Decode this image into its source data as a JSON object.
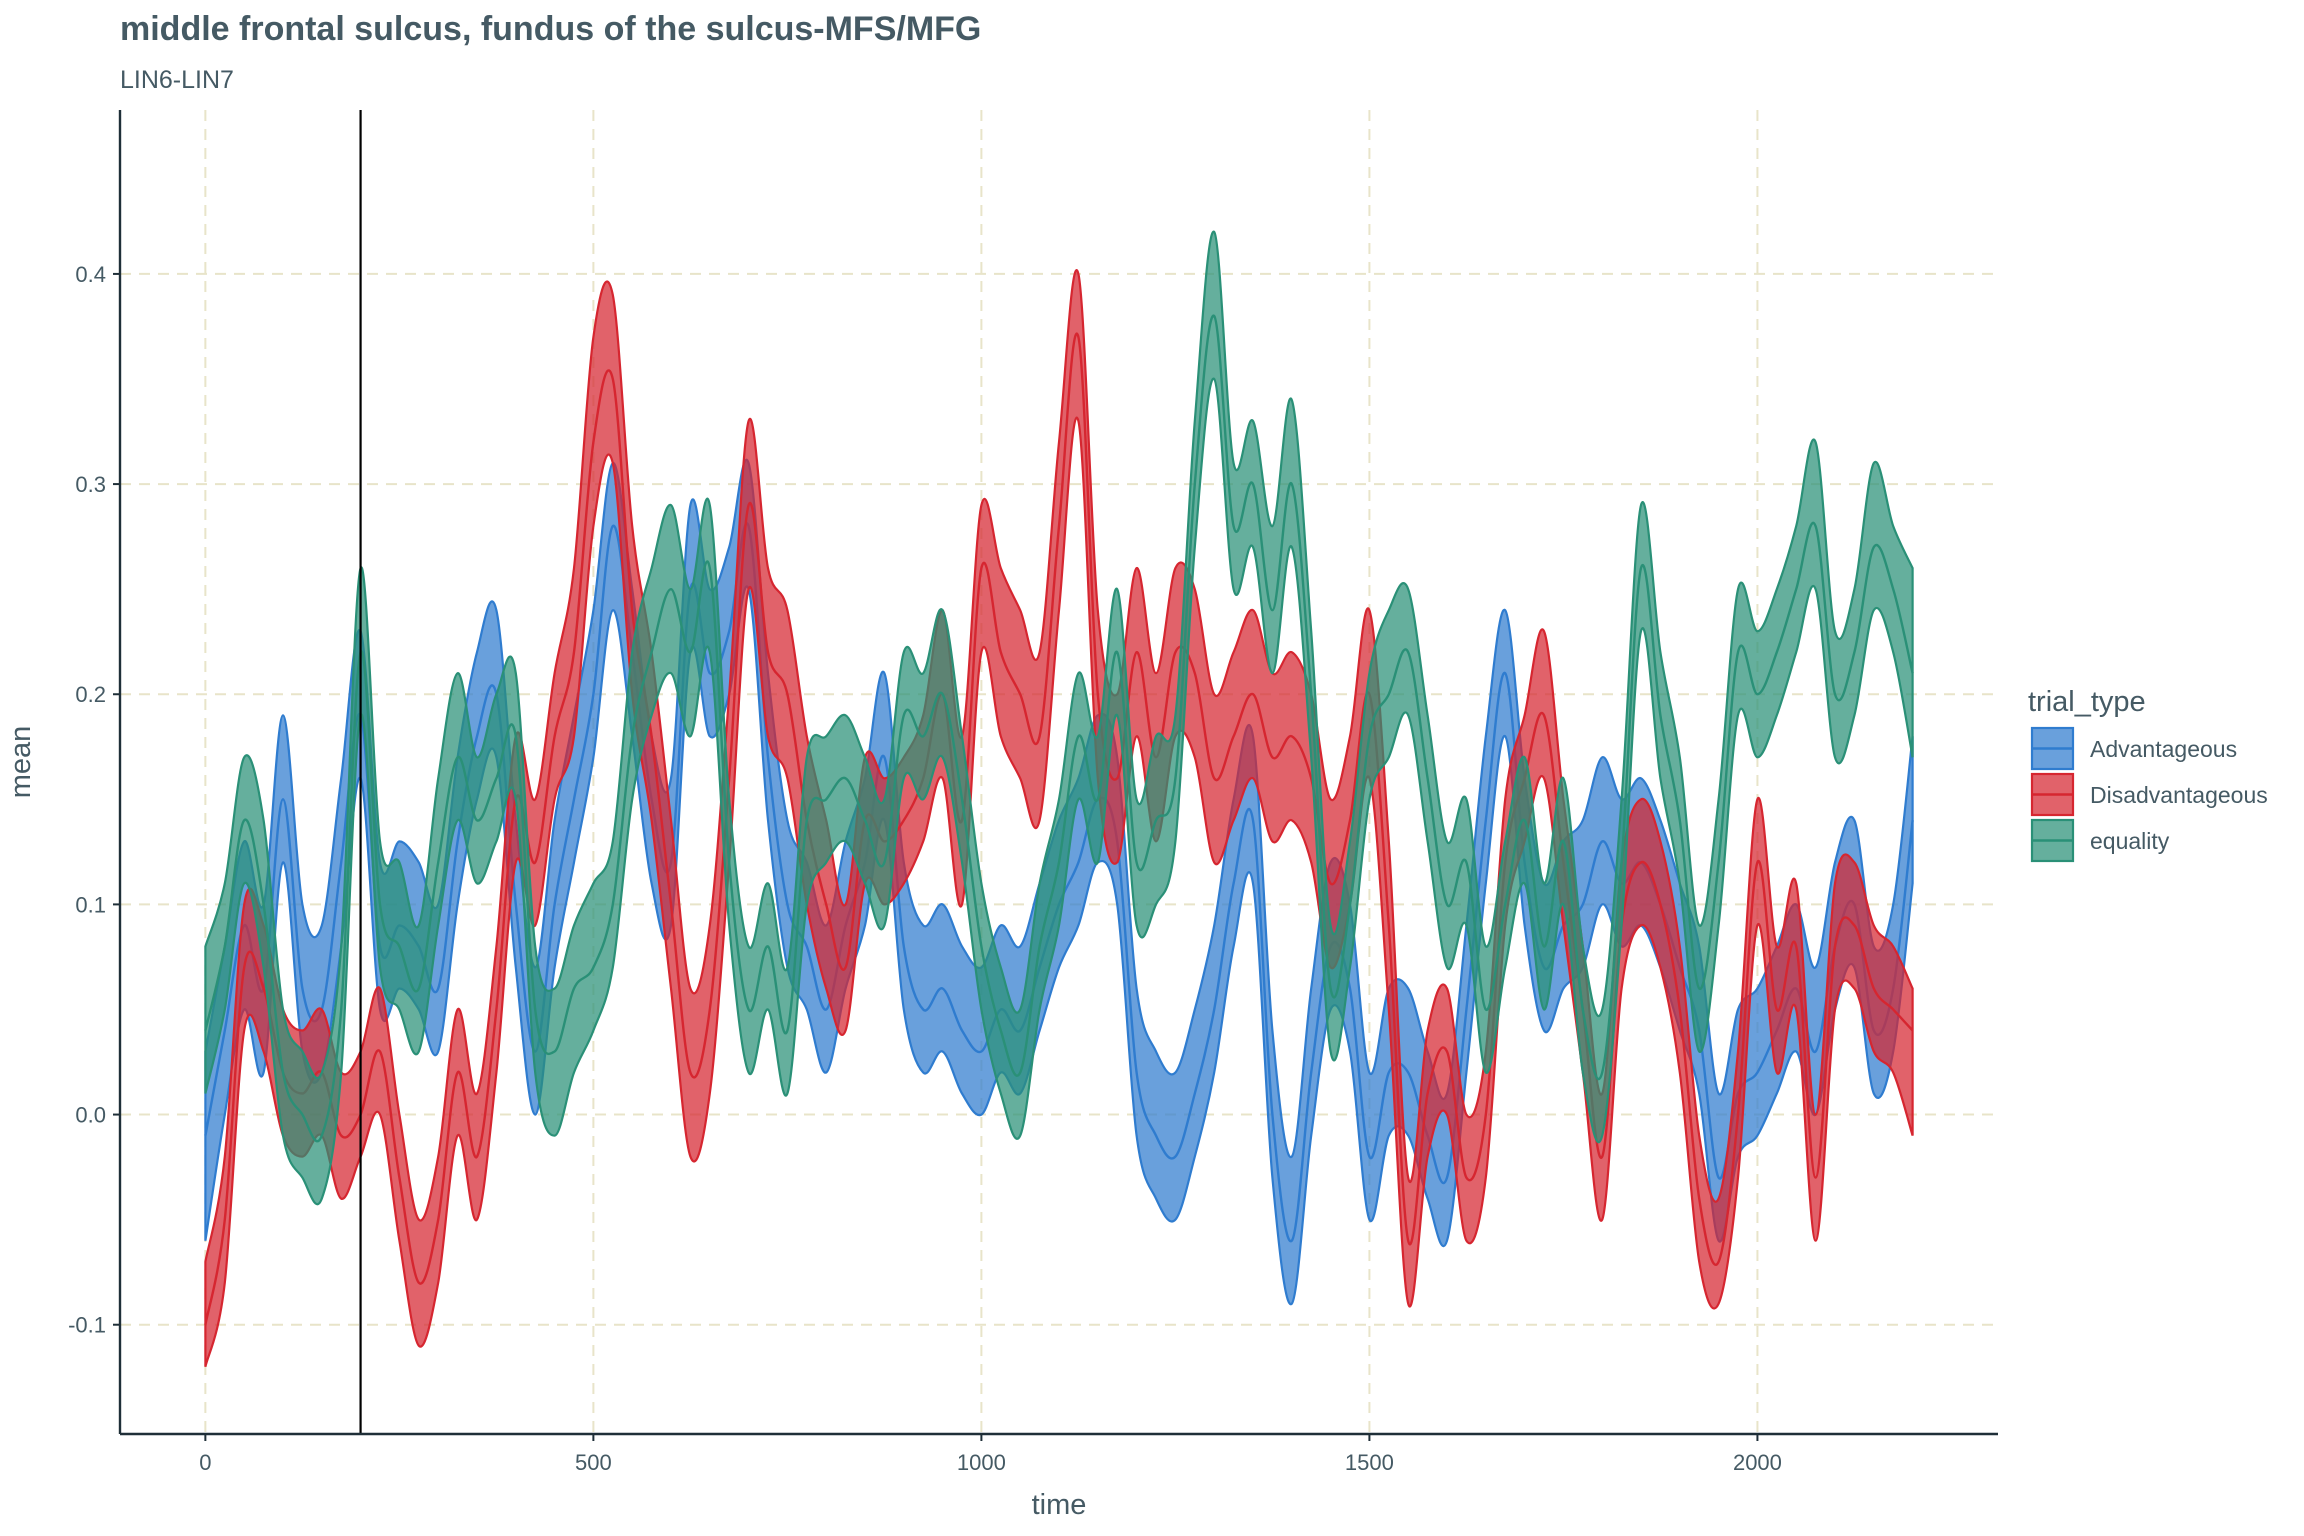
{
  "chart_data": {
    "type": "area",
    "title": "middle frontal sulcus, fundus of the sulcus-MFS/MFG",
    "subtitle": "LIN6-LIN7",
    "xlabel": "time",
    "ylabel": "mean",
    "xlim": [
      -110,
      2310
    ],
    "ylim": [
      -0.152,
      0.478
    ],
    "xticks": [
      0,
      500,
      1000,
      1500,
      2000
    ],
    "xtick_labels": [
      "0",
      "500",
      "1000",
      "1500",
      "2000"
    ],
    "yticks": [
      -0.1,
      0.0,
      0.1,
      0.2,
      0.3,
      0.4
    ],
    "ytick_labels": [
      "-0.1",
      "0.0",
      "0.1",
      "0.2",
      "0.3",
      "0.4"
    ],
    "grid": true,
    "reference_vline_x": 200,
    "legend": {
      "title": "trial_type",
      "position": "right"
    },
    "x": [
      0,
      25,
      50,
      75,
      100,
      125,
      150,
      175,
      200,
      225,
      250,
      275,
      300,
      325,
      350,
      375,
      400,
      425,
      450,
      475,
      500,
      525,
      550,
      575,
      600,
      625,
      650,
      675,
      700,
      725,
      750,
      775,
      800,
      825,
      850,
      875,
      900,
      925,
      950,
      975,
      1000,
      1025,
      1050,
      1075,
      1100,
      1125,
      1150,
      1175,
      1200,
      1225,
      1250,
      1275,
      1300,
      1325,
      1350,
      1375,
      1400,
      1425,
      1450,
      1475,
      1500,
      1525,
      1550,
      1575,
      1600,
      1625,
      1650,
      1675,
      1700,
      1725,
      1750,
      1775,
      1800,
      1825,
      1850,
      1875,
      1900,
      1925,
      1950,
      1975,
      2000,
      2025,
      2050,
      2075,
      2100,
      2125,
      2150,
      2175,
      2200
    ],
    "series": [
      {
        "name": "Advantageous",
        "color": "#2f7ccf",
        "mean": [
          -0.01,
          0.04,
          0.09,
          0.06,
          0.15,
          0.06,
          0.05,
          0.12,
          0.19,
          0.08,
          0.09,
          0.08,
          0.06,
          0.13,
          0.18,
          0.2,
          0.1,
          0.03,
          0.1,
          0.15,
          0.2,
          0.28,
          0.22,
          0.15,
          0.12,
          0.25,
          0.21,
          0.23,
          0.28,
          0.17,
          0.1,
          0.08,
          0.05,
          0.09,
          0.12,
          0.17,
          0.08,
          0.05,
          0.06,
          0.04,
          0.03,
          0.05,
          0.04,
          0.07,
          0.1,
          0.12,
          0.15,
          0.13,
          0.02,
          -0.01,
          -0.02,
          0.01,
          0.05,
          0.11,
          0.14,
          0.0,
          -0.06,
          0.02,
          0.08,
          0.06,
          -0.02,
          0.02,
          0.02,
          -0.01,
          -0.03,
          0.05,
          0.14,
          0.21,
          0.12,
          0.07,
          0.09,
          0.1,
          0.13,
          0.11,
          0.12,
          0.1,
          0.07,
          0.04,
          -0.03,
          0.01,
          0.02,
          0.04,
          0.06,
          0.03,
          0.08,
          0.1,
          0.04,
          0.06,
          0.14
        ],
        "lower": [
          -0.06,
          0.0,
          0.05,
          0.02,
          0.12,
          0.03,
          0.02,
          0.08,
          0.16,
          0.05,
          0.06,
          0.05,
          0.03,
          0.1,
          0.15,
          0.17,
          0.07,
          0.0,
          0.07,
          0.12,
          0.17,
          0.24,
          0.18,
          0.11,
          0.09,
          0.22,
          0.18,
          0.2,
          0.25,
          0.14,
          0.07,
          0.05,
          0.02,
          0.06,
          0.09,
          0.14,
          0.05,
          0.02,
          0.03,
          0.01,
          0.0,
          0.02,
          0.01,
          0.04,
          0.07,
          0.09,
          0.12,
          0.1,
          -0.01,
          -0.04,
          -0.05,
          -0.02,
          0.02,
          0.08,
          0.11,
          -0.03,
          -0.09,
          -0.01,
          0.05,
          0.03,
          -0.05,
          -0.01,
          -0.01,
          -0.04,
          -0.06,
          0.02,
          0.11,
          0.18,
          0.09,
          0.04,
          0.06,
          0.07,
          0.1,
          0.08,
          0.09,
          0.07,
          0.04,
          0.01,
          -0.06,
          -0.02,
          -0.01,
          0.01,
          0.03,
          0.0,
          0.05,
          0.07,
          0.01,
          0.03,
          0.11
        ],
        "upper": [
          0.03,
          0.08,
          0.13,
          0.1,
          0.19,
          0.1,
          0.09,
          0.16,
          0.23,
          0.12,
          0.13,
          0.12,
          0.1,
          0.17,
          0.22,
          0.24,
          0.14,
          0.07,
          0.14,
          0.19,
          0.24,
          0.31,
          0.25,
          0.18,
          0.16,
          0.29,
          0.25,
          0.27,
          0.31,
          0.21,
          0.14,
          0.12,
          0.09,
          0.13,
          0.16,
          0.21,
          0.12,
          0.09,
          0.1,
          0.08,
          0.07,
          0.09,
          0.08,
          0.11,
          0.14,
          0.16,
          0.19,
          0.17,
          0.06,
          0.03,
          0.02,
          0.05,
          0.09,
          0.15,
          0.18,
          0.04,
          -0.02,
          0.06,
          0.12,
          0.1,
          0.02,
          0.06,
          0.06,
          0.03,
          0.01,
          0.09,
          0.18,
          0.24,
          0.16,
          0.11,
          0.13,
          0.14,
          0.17,
          0.15,
          0.16,
          0.14,
          0.11,
          0.08,
          0.01,
          0.05,
          0.06,
          0.08,
          0.1,
          0.07,
          0.12,
          0.14,
          0.08,
          0.1,
          0.18
        ]
      },
      {
        "name": "Disadvantageous",
        "color": "#d62630",
        "mean": [
          -0.1,
          -0.05,
          0.07,
          0.06,
          0.02,
          0.01,
          0.02,
          -0.01,
          0.0,
          0.03,
          -0.03,
          -0.08,
          -0.05,
          0.02,
          -0.02,
          0.05,
          0.15,
          0.12,
          0.18,
          0.22,
          0.32,
          0.35,
          0.24,
          0.18,
          0.1,
          0.02,
          0.05,
          0.16,
          0.29,
          0.22,
          0.2,
          0.14,
          0.1,
          0.07,
          0.14,
          0.13,
          0.14,
          0.16,
          0.2,
          0.14,
          0.26,
          0.22,
          0.2,
          0.18,
          0.28,
          0.37,
          0.2,
          0.16,
          0.22,
          0.17,
          0.22,
          0.21,
          0.16,
          0.18,
          0.2,
          0.17,
          0.18,
          0.16,
          0.11,
          0.14,
          0.2,
          0.09,
          -0.06,
          0.01,
          0.03,
          -0.03,
          0.0,
          0.12,
          0.16,
          0.19,
          0.12,
          0.05,
          -0.02,
          0.09,
          0.12,
          0.1,
          0.05,
          -0.04,
          -0.07,
          0.0,
          0.12,
          0.05,
          0.08,
          -0.03,
          0.08,
          0.09,
          0.06,
          0.05,
          0.04
        ],
        "lower": [
          -0.12,
          -0.08,
          0.04,
          0.03,
          -0.01,
          -0.02,
          -0.01,
          -0.04,
          -0.02,
          0.0,
          -0.06,
          -0.11,
          -0.08,
          -0.01,
          -0.05,
          0.02,
          0.12,
          0.09,
          0.15,
          0.18,
          0.28,
          0.31,
          0.2,
          0.14,
          0.06,
          -0.02,
          0.01,
          0.12,
          0.25,
          0.18,
          0.16,
          0.1,
          0.06,
          0.04,
          0.11,
          0.1,
          0.11,
          0.13,
          0.16,
          0.1,
          0.22,
          0.18,
          0.16,
          0.14,
          0.24,
          0.33,
          0.16,
          0.12,
          0.18,
          0.13,
          0.18,
          0.17,
          0.12,
          0.14,
          0.16,
          0.13,
          0.14,
          0.12,
          0.07,
          0.1,
          0.16,
          0.05,
          -0.09,
          -0.02,
          0.0,
          -0.06,
          -0.03,
          0.09,
          0.13,
          0.16,
          0.09,
          0.02,
          -0.05,
          0.06,
          0.09,
          0.07,
          0.02,
          -0.07,
          -0.09,
          -0.03,
          0.09,
          0.02,
          0.05,
          -0.06,
          0.05,
          0.06,
          0.03,
          0.02,
          -0.01
        ],
        "upper": [
          -0.07,
          -0.02,
          0.1,
          0.09,
          0.05,
          0.04,
          0.05,
          0.02,
          0.03,
          0.06,
          0.0,
          -0.05,
          -0.02,
          0.05,
          0.01,
          0.08,
          0.18,
          0.15,
          0.21,
          0.26,
          0.37,
          0.39,
          0.28,
          0.22,
          0.14,
          0.06,
          0.09,
          0.2,
          0.33,
          0.26,
          0.24,
          0.18,
          0.14,
          0.1,
          0.17,
          0.16,
          0.17,
          0.19,
          0.24,
          0.18,
          0.29,
          0.26,
          0.24,
          0.22,
          0.32,
          0.4,
          0.24,
          0.2,
          0.26,
          0.21,
          0.26,
          0.25,
          0.2,
          0.22,
          0.24,
          0.21,
          0.22,
          0.2,
          0.15,
          0.18,
          0.24,
          0.13,
          -0.03,
          0.04,
          0.06,
          0.0,
          0.03,
          0.15,
          0.19,
          0.23,
          0.15,
          0.08,
          0.01,
          0.12,
          0.15,
          0.13,
          0.08,
          -0.01,
          -0.04,
          0.03,
          0.15,
          0.08,
          0.11,
          0.0,
          0.11,
          0.12,
          0.09,
          0.08,
          0.06
        ]
      },
      {
        "name": "equality",
        "color": "#2a9077",
        "mean": [
          0.04,
          0.08,
          0.14,
          0.1,
          0.02,
          0.0,
          -0.01,
          0.05,
          0.22,
          0.1,
          0.08,
          0.06,
          0.12,
          0.17,
          0.14,
          0.16,
          0.18,
          0.05,
          0.03,
          0.06,
          0.07,
          0.1,
          0.18,
          0.22,
          0.25,
          0.22,
          0.26,
          0.12,
          0.05,
          0.08,
          0.04,
          0.14,
          0.15,
          0.16,
          0.14,
          0.12,
          0.19,
          0.18,
          0.2,
          0.15,
          0.08,
          0.04,
          0.02,
          0.08,
          0.12,
          0.18,
          0.15,
          0.22,
          0.12,
          0.14,
          0.16,
          0.3,
          0.38,
          0.28,
          0.3,
          0.24,
          0.3,
          0.2,
          0.06,
          0.1,
          0.18,
          0.2,
          0.22,
          0.16,
          0.1,
          0.12,
          0.05,
          0.1,
          0.14,
          0.08,
          0.13,
          0.05,
          0.02,
          0.12,
          0.26,
          0.19,
          0.14,
          0.06,
          0.12,
          0.22,
          0.2,
          0.22,
          0.25,
          0.28,
          0.2,
          0.22,
          0.27,
          0.25,
          0.21
        ],
        "lower": [
          0.01,
          0.05,
          0.11,
          0.07,
          -0.01,
          -0.03,
          -0.04,
          0.02,
          0.19,
          0.07,
          0.05,
          0.03,
          0.09,
          0.14,
          0.11,
          0.13,
          0.15,
          0.02,
          -0.01,
          0.02,
          0.04,
          0.07,
          0.15,
          0.19,
          0.21,
          0.18,
          0.22,
          0.09,
          0.02,
          0.05,
          0.01,
          0.1,
          0.12,
          0.13,
          0.11,
          0.09,
          0.16,
          0.15,
          0.17,
          0.12,
          0.05,
          0.01,
          -0.01,
          0.05,
          0.09,
          0.15,
          0.12,
          0.19,
          0.09,
          0.1,
          0.13,
          0.27,
          0.35,
          0.25,
          0.27,
          0.21,
          0.27,
          0.17,
          0.03,
          0.07,
          0.15,
          0.17,
          0.19,
          0.13,
          0.07,
          0.09,
          0.02,
          0.07,
          0.11,
          0.05,
          0.1,
          0.02,
          -0.01,
          0.09,
          0.23,
          0.16,
          0.11,
          0.03,
          0.09,
          0.19,
          0.17,
          0.19,
          0.22,
          0.25,
          0.17,
          0.19,
          0.24,
          0.22,
          0.17
        ],
        "upper": [
          0.08,
          0.11,
          0.17,
          0.14,
          0.05,
          0.03,
          0.02,
          0.08,
          0.26,
          0.13,
          0.12,
          0.09,
          0.16,
          0.21,
          0.17,
          0.2,
          0.21,
          0.08,
          0.06,
          0.09,
          0.11,
          0.13,
          0.22,
          0.26,
          0.29,
          0.25,
          0.29,
          0.15,
          0.08,
          0.11,
          0.07,
          0.17,
          0.18,
          0.19,
          0.17,
          0.15,
          0.22,
          0.21,
          0.24,
          0.18,
          0.11,
          0.07,
          0.05,
          0.11,
          0.15,
          0.21,
          0.18,
          0.25,
          0.15,
          0.18,
          0.19,
          0.33,
          0.42,
          0.31,
          0.33,
          0.28,
          0.34,
          0.23,
          0.09,
          0.13,
          0.21,
          0.24,
          0.25,
          0.19,
          0.13,
          0.15,
          0.08,
          0.13,
          0.17,
          0.11,
          0.16,
          0.08,
          0.05,
          0.15,
          0.29,
          0.22,
          0.17,
          0.09,
          0.15,
          0.25,
          0.23,
          0.25,
          0.28,
          0.32,
          0.23,
          0.25,
          0.31,
          0.28,
          0.26
        ]
      }
    ]
  }
}
